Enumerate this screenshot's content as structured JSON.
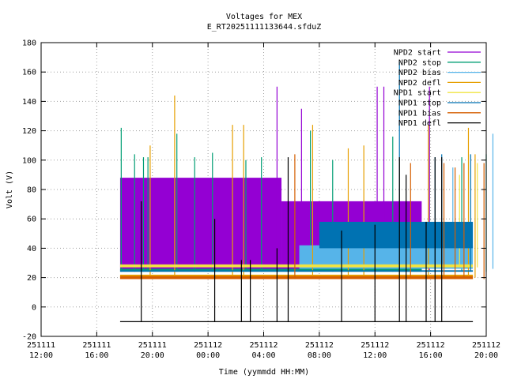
{
  "chart_data": {
    "type": "line",
    "title": "Voltages for MEX",
    "subtitle": "E_RT20251111133644.sfduZ",
    "xlabel": "Time (yymmdd HH:MM)",
    "ylabel": "Volt (V)",
    "ylim": [
      -20,
      180
    ],
    "yticks": [
      -20,
      0,
      20,
      40,
      60,
      80,
      100,
      120,
      140,
      160,
      180
    ],
    "xlim_hours": [
      12,
      32
    ],
    "xticks": [
      {
        "line1": "251111",
        "line2": "12:00"
      },
      {
        "line1": "251111",
        "line2": "16:00"
      },
      {
        "line1": "251111",
        "line2": "20:00"
      },
      {
        "line1": "251112",
        "line2": "00:00"
      },
      {
        "line1": "251112",
        "line2": "04:00"
      },
      {
        "line1": "251112",
        "line2": "08:00"
      },
      {
        "line1": "251112",
        "line2": "12:00"
      },
      {
        "line1": "251112",
        "line2": "16:00"
      },
      {
        "line1": "251112",
        "line2": "20:00"
      }
    ],
    "grid": true,
    "legend_position": "top-right",
    "series": [
      {
        "name": "NPD2 start",
        "color": "#9400d3",
        "bands": [
          {
            "x0": 15.55,
            "x1": 22.8,
            "lo": 25,
            "hi": 88
          },
          {
            "x0": 22.8,
            "x1": 29.1,
            "lo": 25,
            "hi": 72
          }
        ],
        "spikes": [
          {
            "x": 22.6,
            "y": 150
          },
          {
            "x": 23.7,
            "y": 135
          },
          {
            "x": 27.1,
            "y": 150
          },
          {
            "x": 27.4,
            "y": 150
          },
          {
            "x": 29.45,
            "y": 150
          }
        ]
      },
      {
        "name": "NPD2 stop",
        "color": "#009e73",
        "bands": [
          {
            "x0": 15.55,
            "x1": 29.1,
            "lo": 24,
            "hi": 26
          }
        ],
        "spikes": [
          {
            "x": 15.6,
            "y": 122
          },
          {
            "x": 16.2,
            "y": 104
          },
          {
            "x": 16.6,
            "y": 102
          },
          {
            "x": 16.8,
            "y": 102
          },
          {
            "x": 18.1,
            "y": 118
          },
          {
            "x": 18.9,
            "y": 102
          },
          {
            "x": 19.7,
            "y": 105
          },
          {
            "x": 21.2,
            "y": 100
          },
          {
            "x": 21.9,
            "y": 102
          },
          {
            "x": 24.1,
            "y": 120
          },
          {
            "x": 25.1,
            "y": 100
          },
          {
            "x": 27.8,
            "y": 116
          },
          {
            "x": 30.9,
            "y": 102
          },
          {
            "x": 32.0,
            "y": 104
          }
        ]
      },
      {
        "name": "NPD2 bias",
        "color": "#56b4e9",
        "bands": [
          {
            "x0": 23.6,
            "x1": 31.4,
            "lo": 26,
            "hi": 42
          }
        ],
        "spikes": [
          {
            "x": 30.5,
            "y": 95
          },
          {
            "x": 32.3,
            "y": 118
          },
          {
            "x": 33.0,
            "y": 100
          }
        ]
      },
      {
        "name": "NPD2 defl",
        "color": "#e69f00",
        "bands": [
          {
            "x0": 15.55,
            "x1": 31.4,
            "lo": 20,
            "hi": 22
          }
        ],
        "spikes": [
          {
            "x": 16.9,
            "y": 110
          },
          {
            "x": 18.0,
            "y": 144
          },
          {
            "x": 20.6,
            "y": 124
          },
          {
            "x": 21.1,
            "y": 124
          },
          {
            "x": 24.2,
            "y": 124
          },
          {
            "x": 25.8,
            "y": 108
          },
          {
            "x": 26.5,
            "y": 110
          },
          {
            "x": 28.1,
            "y": 102
          },
          {
            "x": 29.4,
            "y": 124
          },
          {
            "x": 31.2,
            "y": 122
          },
          {
            "x": 31.5,
            "y": 104
          }
        ]
      },
      {
        "name": "NPD1 start",
        "color": "#f0e442",
        "bands": [
          {
            "x0": 15.55,
            "x1": 31.4,
            "lo": 27,
            "hi": 29
          }
        ],
        "spikes": [
          {
            "x": 30.8,
            "y": 90
          },
          {
            "x": 31.6,
            "y": 98
          }
        ]
      },
      {
        "name": "NPD1 stop",
        "color": "#0072b2",
        "bands": [
          {
            "x0": 15.55,
            "x1": 31.4,
            "lo": 24,
            "hi": 25
          },
          {
            "x0": 24.5,
            "x1": 31.4,
            "lo": 40,
            "hi": 58
          }
        ],
        "spikes": [
          {
            "x": 28.1,
            "y": 167
          },
          {
            "x": 29.7,
            "y": 102
          },
          {
            "x": 30.0,
            "y": 104
          },
          {
            "x": 31.3,
            "y": 104
          }
        ]
      },
      {
        "name": "NPD1 bias",
        "color": "#d55e00",
        "bands": [
          {
            "x0": 15.55,
            "x1": 31.4,
            "lo": 19,
            "hi": 21
          }
        ],
        "spikes": [
          {
            "x": 23.4,
            "y": 104
          },
          {
            "x": 28.6,
            "y": 98
          },
          {
            "x": 30.1,
            "y": 98
          },
          {
            "x": 30.6,
            "y": 95
          },
          {
            "x": 31.0,
            "y": 98
          },
          {
            "x": 31.9,
            "y": 98
          }
        ]
      },
      {
        "name": "NPD1 defl",
        "color": "#000000",
        "bands": [
          {
            "x0": 15.55,
            "x1": 31.4,
            "lo": -10,
            "hi": -10
          }
        ],
        "spikes": [
          {
            "x": 16.5,
            "y": 72
          },
          {
            "x": 19.8,
            "y": 60
          },
          {
            "x": 21.0,
            "y": 32
          },
          {
            "x": 21.4,
            "y": 32
          },
          {
            "x": 22.6,
            "y": 40
          },
          {
            "x": 23.1,
            "y": 102
          },
          {
            "x": 25.5,
            "y": 52
          },
          {
            "x": 27.0,
            "y": 56
          },
          {
            "x": 28.1,
            "y": 102
          },
          {
            "x": 28.4,
            "y": 90
          },
          {
            "x": 29.3,
            "y": 58
          },
          {
            "x": 29.7,
            "y": 102
          },
          {
            "x": 30.0,
            "y": 102
          }
        ]
      }
    ]
  }
}
